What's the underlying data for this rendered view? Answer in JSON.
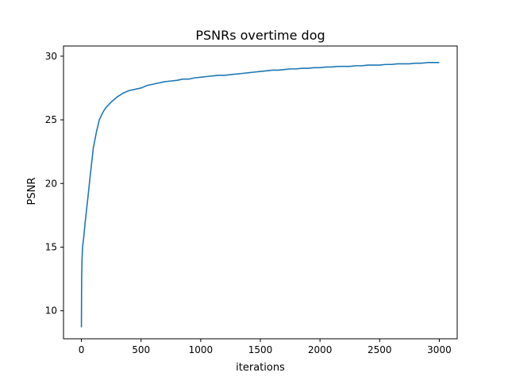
{
  "chart_data": {
    "type": "line",
    "title": "PSNRs overtime dog",
    "xlabel": "iterations",
    "ylabel": "PSNR",
    "xlim": [
      -150,
      3150
    ],
    "ylim": [
      7.8,
      30.8
    ],
    "xticks": [
      0,
      500,
      1000,
      1500,
      2000,
      2500,
      3000
    ],
    "yticks": [
      10,
      15,
      20,
      25,
      30
    ],
    "grid": false,
    "legend": "none",
    "series": [
      {
        "color": "#1f77b4",
        "x": [
          0,
          2,
          5,
          10,
          20,
          30,
          50,
          75,
          100,
          125,
          150,
          175,
          200,
          250,
          300,
          350,
          400,
          450,
          500,
          550,
          600,
          650,
          700,
          750,
          800,
          850,
          900,
          950,
          1000,
          1050,
          1100,
          1150,
          1200,
          1250,
          1300,
          1350,
          1400,
          1450,
          1500,
          1550,
          1600,
          1650,
          1700,
          1750,
          1800,
          1850,
          1900,
          1950,
          2000,
          2050,
          2100,
          2150,
          2200,
          2250,
          2300,
          2350,
          2400,
          2450,
          2500,
          2550,
          2600,
          2650,
          2700,
          2750,
          2800,
          2850,
          2900,
          2950,
          3000
        ],
        "y": [
          8.7,
          12.5,
          14.0,
          15.0,
          15.8,
          16.8,
          18.5,
          20.7,
          22.8,
          24.0,
          25.0,
          25.5,
          25.9,
          26.4,
          26.8,
          27.1,
          27.3,
          27.4,
          27.5,
          27.7,
          27.8,
          27.9,
          28.0,
          28.05,
          28.1,
          28.2,
          28.2,
          28.3,
          28.35,
          28.4,
          28.45,
          28.5,
          28.5,
          28.55,
          28.6,
          28.65,
          28.7,
          28.75,
          28.8,
          28.85,
          28.9,
          28.9,
          28.95,
          29.0,
          29.0,
          29.05,
          29.05,
          29.1,
          29.1,
          29.15,
          29.15,
          29.2,
          29.2,
          29.2,
          29.25,
          29.25,
          29.3,
          29.3,
          29.3,
          29.35,
          29.35,
          29.4,
          29.4,
          29.4,
          29.45,
          29.45,
          29.5,
          29.5,
          29.5
        ]
      }
    ]
  }
}
